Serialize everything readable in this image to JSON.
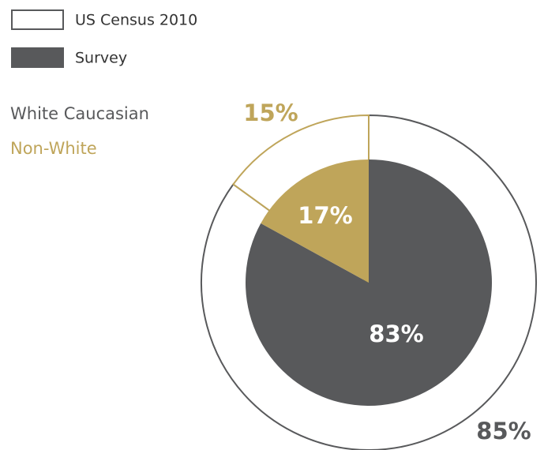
{
  "chart_data": {
    "type": "pie",
    "categories": [
      "White Caucasian",
      "Non-White"
    ],
    "colors": [
      "#58595b",
      "#bfa55a"
    ],
    "series": [
      {
        "name": "US Census 2010",
        "color": "#ffffff",
        "values": [
          85,
          15
        ],
        "value_labels": [
          "85%",
          "15%"
        ]
      },
      {
        "name": "Survey",
        "color": "#58595b",
        "values": [
          83,
          17
        ],
        "value_labels": [
          "83%",
          "17%"
        ]
      }
    ]
  }
}
